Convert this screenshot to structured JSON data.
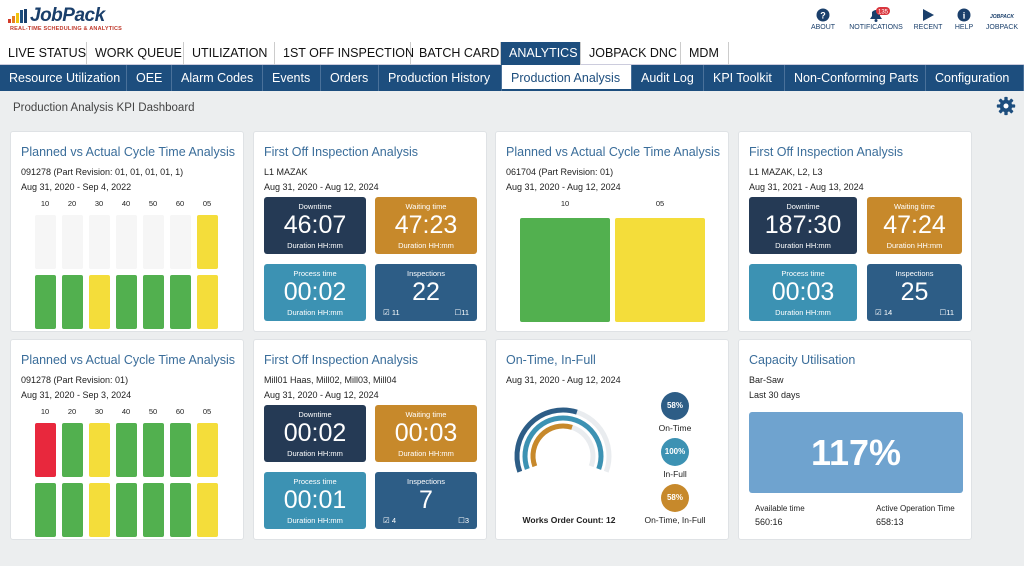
{
  "app": {
    "logo_name": "JobPack",
    "logo_tagline": "REAL-TIME SCHEDULING & ANALYTICS",
    "toolbar": [
      {
        "label": "ABOUT",
        "icon": "help-circle-icon"
      },
      {
        "label": "NOTIFICATIONS",
        "icon": "bell-icon",
        "badge": "135"
      },
      {
        "label": "RECENT",
        "icon": "play-icon"
      },
      {
        "label": "HELP",
        "icon": "info-icon"
      },
      {
        "label": "JOBPACK",
        "icon": "jobpack-icon"
      }
    ]
  },
  "main_tabs": [
    "LIVE STATUS",
    "WORK QUEUE",
    "UTILIZATION",
    "1ST OFF INSPECTION",
    "BATCH CARD",
    "ANALYTICS",
    "JOBPACK DNC",
    "MDM"
  ],
  "active_main_tab": "ANALYTICS",
  "sub_tabs": [
    "Resource Utilization",
    "OEE",
    "Alarm Codes",
    "Events",
    "Orders",
    "Production History",
    "Production Analysis",
    "Audit Log",
    "KPI Toolkit",
    "Non-Conforming Parts",
    "Configuration"
  ],
  "active_sub_tab": "Production Analysis",
  "page_title": "Production Analysis KPI Dashboard",
  "colors": {
    "green": "#52b04f",
    "yellow": "#f4dd3a",
    "red": "#e8283d",
    "navy": "#253a55",
    "orange": "#c7892b",
    "teal": "#3c92b3",
    "blue": "#2d5d86",
    "brand": "#1d4e7e",
    "capacity": "#6fa3cf"
  },
  "cards": {
    "cycle1": {
      "title": "Planned vs Actual Cycle Time Analysis",
      "line1": "091278 (Part Revision: 01, 01, 01, 01, 1)",
      "line2": "Aug 31, 2020 - Sep 4, 2022",
      "ops": [
        "10",
        "20",
        "30",
        "40",
        "50",
        "60",
        "05"
      ],
      "planned_status": [
        "none",
        "none",
        "none",
        "none",
        "none",
        "none",
        "yellow"
      ],
      "actual_status": [
        "green",
        "green",
        "yellow",
        "green",
        "green",
        "green",
        "yellow"
      ]
    },
    "insp1": {
      "title": "First Off Inspection Analysis",
      "line1": "L1 MAZAK",
      "line2": "Aug 31, 2020 - Aug 12, 2024",
      "downtime_label": "Downtime",
      "downtime": "46:07",
      "downtime_unit": "Duration HH:mm",
      "waiting_label": "Waiting time",
      "waiting": "47:23",
      "waiting_unit": "Duration HH:mm",
      "process_label": "Process time",
      "process": "00:02",
      "process_unit": "Duration HH:mm",
      "insp_label": "Inspections",
      "insp": "22",
      "insp_pass": "11",
      "insp_open": "11"
    },
    "cycle2": {
      "title": "Planned vs Actual Cycle Time Analysis",
      "line1": "061704 (Part Revision: 01)",
      "line2": "Aug 31, 2020 - Aug 12, 2024",
      "ops": [
        "10",
        "05"
      ],
      "actual_status": [
        "green",
        "yellow"
      ]
    },
    "insp2": {
      "title": "First Off Inspection Analysis",
      "line1": "L1 MAZAK, L2, L3",
      "line2": "Aug 31, 2021 - Aug 13, 2024",
      "downtime_label": "Downtime",
      "downtime": "187:30",
      "downtime_unit": "Duration HH:mm",
      "waiting_label": "Waiting time",
      "waiting": "47:24",
      "waiting_unit": "Duration HH:mm",
      "process_label": "Process time",
      "process": "00:03",
      "process_unit": "Duration HH:mm",
      "insp_label": "Inspections",
      "insp": "25",
      "insp_pass": "14",
      "insp_open": "11"
    },
    "cycle3": {
      "title": "Planned vs Actual Cycle Time Analysis",
      "line1": "091278 (Part Revision: 01)",
      "line2": "Aug 31, 2020 - Sep 3, 2024",
      "ops": [
        "10",
        "20",
        "30",
        "40",
        "50",
        "60",
        "05"
      ],
      "planned_status": [
        "red",
        "green",
        "yellow",
        "green",
        "green",
        "green",
        "yellow"
      ],
      "actual_status": [
        "green",
        "green",
        "yellow",
        "green",
        "green",
        "green",
        "yellow"
      ]
    },
    "insp3": {
      "title": "First Off Inspection Analysis",
      "line1": "Mill01 Haas, Mill02, Mill03, Mill04",
      "line2": "Aug 31, 2020 - Aug 12, 2024",
      "downtime_label": "Downtime",
      "downtime": "00:02",
      "downtime_unit": "Duration HH:mm",
      "waiting_label": "Waiting time",
      "waiting": "00:03",
      "waiting_unit": "Duration HH:mm",
      "process_label": "Process time",
      "process": "00:01",
      "process_unit": "Duration HH:mm",
      "insp_label": "Inspections",
      "insp": "7",
      "insp_pass": "4",
      "insp_open": "3"
    },
    "otif": {
      "title": "On-Time, In-Full",
      "line1": "Aug 31, 2020 - Aug 12, 2024",
      "ontime_pct": "58%",
      "ontime_label": "On-Time",
      "infull_pct": "100%",
      "infull_label": "In-Full",
      "otif_pct": "58%",
      "otif_label": "On-Time, In-Full",
      "count_label": "Works Order Count: 12",
      "fractions": [
        0.58,
        1.0,
        0.58
      ]
    },
    "capacity": {
      "title": "Capacity Utilisation",
      "line1": "Bar-Saw",
      "line2": "Last 30 days",
      "value": "117%",
      "available_label": "Available time",
      "available": "560:16",
      "active_label": "Active Operation Time",
      "active": "658:13"
    }
  }
}
